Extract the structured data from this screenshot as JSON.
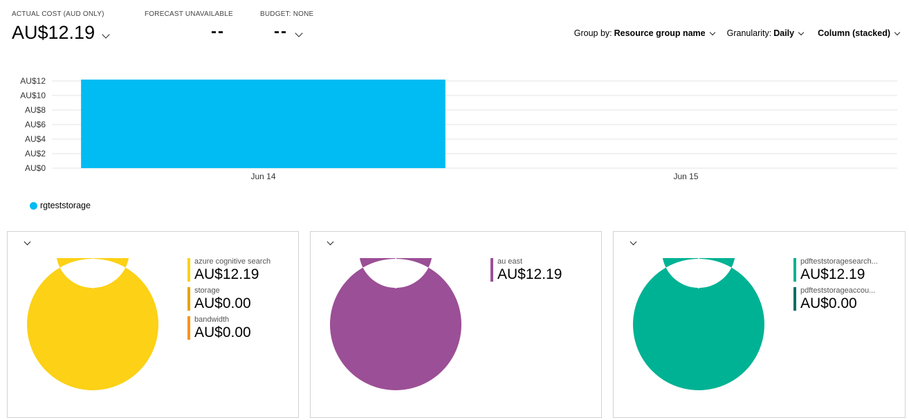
{
  "kpis": [
    {
      "label": "ACTUAL COST (AUD ONLY)",
      "value": "AU$12.19"
    },
    {
      "label": "FORECAST UNAVAILABLE",
      "value": "--"
    },
    {
      "label": "BUDGET: NONE",
      "value": "--"
    }
  ],
  "controls": {
    "group_by_label": "Group by:",
    "group_by_value": "Resource group name",
    "granularity_label": "Granularity:",
    "granularity_value": "Daily",
    "chart_type_value": "Column (stacked)"
  },
  "chart_data": {
    "type": "bar",
    "categories": [
      "Jun 14",
      "Jun 15"
    ],
    "series": [
      {
        "name": "rgteststorage",
        "values": [
          12.19,
          0
        ],
        "color": "#00bcf2"
      }
    ],
    "ylim": [
      0,
      12
    ],
    "yticks": [
      0,
      2,
      4,
      6,
      8,
      10,
      12
    ],
    "ytick_labels": [
      "AU$0",
      "AU$2",
      "AU$4",
      "AU$6",
      "AU$8",
      "AU$10",
      "AU$12"
    ],
    "xlabel": "",
    "ylabel": "",
    "grid": true,
    "legend": "bottom-left"
  },
  "legend": {
    "label": "rgteststorage",
    "color": "#00bcf2"
  },
  "cards": [
    {
      "items": [
        {
          "name": "azure cognitive search",
          "value": "AU$12.19",
          "amount": 12.19,
          "color": "#fcd116"
        },
        {
          "name": "storage",
          "value": "AU$0.00",
          "amount": 0,
          "color": "#eaa300"
        },
        {
          "name": "bandwidth",
          "value": "AU$0.00",
          "amount": 0,
          "color": "#f7941d"
        }
      ]
    },
    {
      "items": [
        {
          "name": "au east",
          "value": "AU$12.19",
          "amount": 12.19,
          "color": "#9b4f96"
        }
      ]
    },
    {
      "items": [
        {
          "name": "pdfteststoragesearch...",
          "value": "AU$12.19",
          "amount": 12.19,
          "color": "#00b294"
        },
        {
          "name": "pdfteststorageaccou...",
          "value": "AU$0.00",
          "amount": 0,
          "color": "#006e67"
        }
      ]
    }
  ]
}
